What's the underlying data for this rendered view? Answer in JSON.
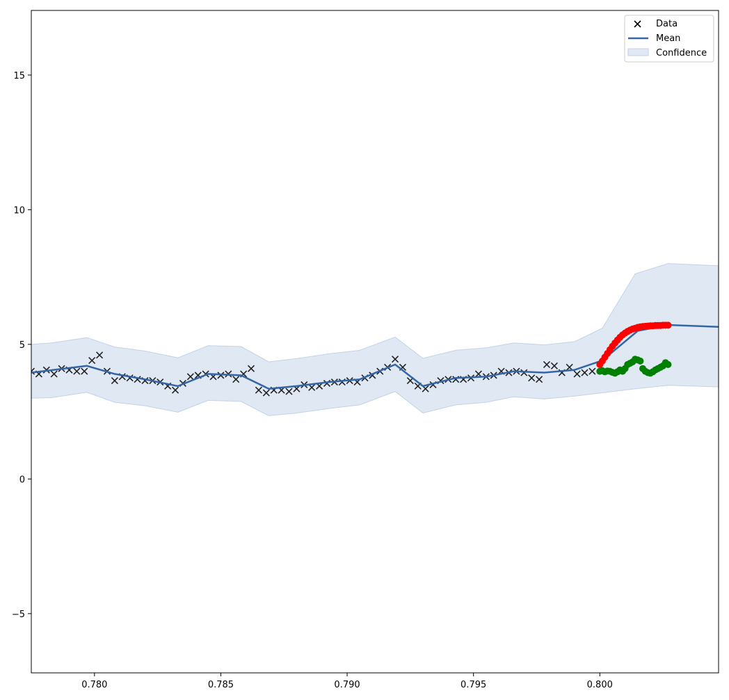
{
  "chart_data": {
    "type": "scatter",
    "title": "",
    "xlabel": "",
    "ylabel": "",
    "xlim": [
      0.7775,
      0.8047
    ],
    "ylim": [
      -7.2,
      17.4
    ],
    "grid": false,
    "legend_position": "top-right",
    "x_ticks": [
      0.78,
      0.785,
      0.79,
      0.795,
      0.8
    ],
    "x_tick_labels": [
      "0.780",
      "0.785",
      "0.790",
      "0.795",
      "0.800"
    ],
    "y_ticks": [
      -5,
      0,
      5,
      10,
      15
    ],
    "y_tick_labels": [
      "−5",
      "0",
      "5",
      "10",
      "15"
    ],
    "legend": [
      "Data",
      "Mean",
      "Confidence"
    ],
    "colors": {
      "data": "#222222",
      "mean": "#3465a4",
      "confidence": "#e0e8f3",
      "confidence_edge": "#c3d2e8",
      "forecast_red": "#ff0000",
      "forecast_green": "#008000"
    },
    "series": [
      {
        "name": "Data",
        "type": "scatter",
        "marker": "x",
        "x": [
          0.7775,
          0.7778,
          0.7781,
          0.7784,
          0.7787,
          0.779,
          0.7793,
          0.7796,
          0.7799,
          0.7802,
          0.7805,
          0.7808,
          0.7811,
          0.7814,
          0.7817,
          0.782,
          0.7823,
          0.7826,
          0.7829,
          0.7832,
          0.7835,
          0.7838,
          0.7841,
          0.7844,
          0.7847,
          0.785,
          0.7853,
          0.7856,
          0.7859,
          0.7862,
          0.7865,
          0.7868,
          0.7871,
          0.7874,
          0.7877,
          0.788,
          0.7883,
          0.7886,
          0.7889,
          0.7892,
          0.7895,
          0.7898,
          0.7901,
          0.7904,
          0.7907,
          0.791,
          0.7913,
          0.7916,
          0.7919,
          0.7922,
          0.7925,
          0.7928,
          0.7931,
          0.7934,
          0.7937,
          0.794,
          0.7943,
          0.7946,
          0.7949,
          0.7952,
          0.7955,
          0.7958,
          0.7961,
          0.7964,
          0.7967,
          0.797,
          0.7973,
          0.7976,
          0.7979,
          0.7982,
          0.7985,
          0.7988,
          0.7991,
          0.7994,
          0.7997
        ],
        "y": [
          4.0,
          3.9,
          4.05,
          3.9,
          4.1,
          4.05,
          4.0,
          4.0,
          4.4,
          4.6,
          4.0,
          3.65,
          3.8,
          3.75,
          3.7,
          3.65,
          3.65,
          3.6,
          3.45,
          3.3,
          3.55,
          3.8,
          3.85,
          3.9,
          3.8,
          3.85,
          3.9,
          3.7,
          3.9,
          4.1,
          3.3,
          3.2,
          3.3,
          3.3,
          3.25,
          3.35,
          3.5,
          3.4,
          3.45,
          3.55,
          3.6,
          3.6,
          3.65,
          3.6,
          3.75,
          3.85,
          4.0,
          4.15,
          4.45,
          4.15,
          3.65,
          3.45,
          3.35,
          3.5,
          3.65,
          3.7,
          3.7,
          3.7,
          3.75,
          3.9,
          3.8,
          3.85,
          4.0,
          3.95,
          4.0,
          3.95,
          3.75,
          3.7,
          4.25,
          4.2,
          3.95,
          4.15,
          3.9,
          3.95,
          4.0
        ]
      },
      {
        "name": "Mean",
        "type": "line",
        "x": [
          0.7775,
          0.7797,
          0.7808,
          0.782,
          0.7833,
          0.7845,
          0.7858,
          0.7869,
          0.788,
          0.7893,
          0.7905,
          0.7919,
          0.793,
          0.7943,
          0.7955,
          0.7966,
          0.7978,
          0.799,
          0.8001,
          0.8015,
          0.8027,
          0.8047
        ],
        "y": [
          3.95,
          4.2,
          3.9,
          3.7,
          3.45,
          3.9,
          3.85,
          3.35,
          3.45,
          3.6,
          3.7,
          4.25,
          3.45,
          3.75,
          3.8,
          4.0,
          3.95,
          4.05,
          4.4,
          5.5,
          5.72,
          5.65
        ]
      },
      {
        "name": "Confidence",
        "type": "area",
        "x": [
          0.7775,
          0.7783,
          0.7797,
          0.7808,
          0.782,
          0.7833,
          0.7845,
          0.7858,
          0.7869,
          0.788,
          0.7893,
          0.7905,
          0.7919,
          0.793,
          0.7943,
          0.7955,
          0.7966,
          0.7978,
          0.799,
          0.8001,
          0.8014,
          0.8027,
          0.8047
        ],
        "upper": [
          5.0,
          5.05,
          5.25,
          4.9,
          4.75,
          4.5,
          4.95,
          4.92,
          4.35,
          4.47,
          4.65,
          4.78,
          5.27,
          4.48,
          4.78,
          4.87,
          5.05,
          4.98,
          5.1,
          5.6,
          7.62,
          8.0,
          7.92
        ],
        "lower": [
          3.0,
          3.02,
          3.22,
          2.85,
          2.72,
          2.48,
          2.92,
          2.88,
          2.35,
          2.45,
          2.62,
          2.75,
          3.25,
          2.45,
          2.75,
          2.85,
          3.05,
          2.97,
          3.08,
          3.2,
          3.35,
          3.48,
          3.42
        ]
      },
      {
        "type": "scatter",
        "marker": "o",
        "color": "red",
        "x": [
          0.8,
          0.8001,
          0.8002,
          0.8003,
          0.8004,
          0.8005,
          0.8006,
          0.8007,
          0.8008,
          0.8009,
          0.801,
          0.8011,
          0.8012,
          0.8013,
          0.8014,
          0.8015,
          0.8016,
          0.8017,
          0.8018,
          0.8019,
          0.802,
          0.8021,
          0.8022,
          0.8023,
          0.8024,
          0.8025,
          0.8026,
          0.8027
        ],
        "y": [
          4.25,
          4.38,
          4.52,
          4.66,
          4.8,
          4.93,
          5.05,
          5.16,
          5.26,
          5.35,
          5.42,
          5.48,
          5.53,
          5.57,
          5.6,
          5.63,
          5.65,
          5.66,
          5.67,
          5.68,
          5.69,
          5.69,
          5.7,
          5.7,
          5.7,
          5.71,
          5.71,
          5.71
        ]
      },
      {
        "type": "scatter",
        "marker": "o",
        "color": "green",
        "x": [
          0.8,
          0.8001,
          0.8002,
          0.8003,
          0.8004,
          0.8005,
          0.8006,
          0.8007,
          0.8008,
          0.8009,
          0.801,
          0.8011,
          0.8012,
          0.8013,
          0.8014,
          0.8015,
          0.8016,
          0.8017,
          0.8018,
          0.8019,
          0.802,
          0.8021,
          0.8022,
          0.8023,
          0.8024,
          0.8025,
          0.8026,
          0.8027
        ],
        "y": [
          4.0,
          4.02,
          3.98,
          4.01,
          4.0,
          3.96,
          3.93,
          3.98,
          4.05,
          4.0,
          4.1,
          4.25,
          4.3,
          4.35,
          4.45,
          4.42,
          4.38,
          4.1,
          4.0,
          3.95,
          3.93,
          3.98,
          4.05,
          4.1,
          4.15,
          4.2,
          4.32,
          4.25
        ]
      }
    ]
  }
}
